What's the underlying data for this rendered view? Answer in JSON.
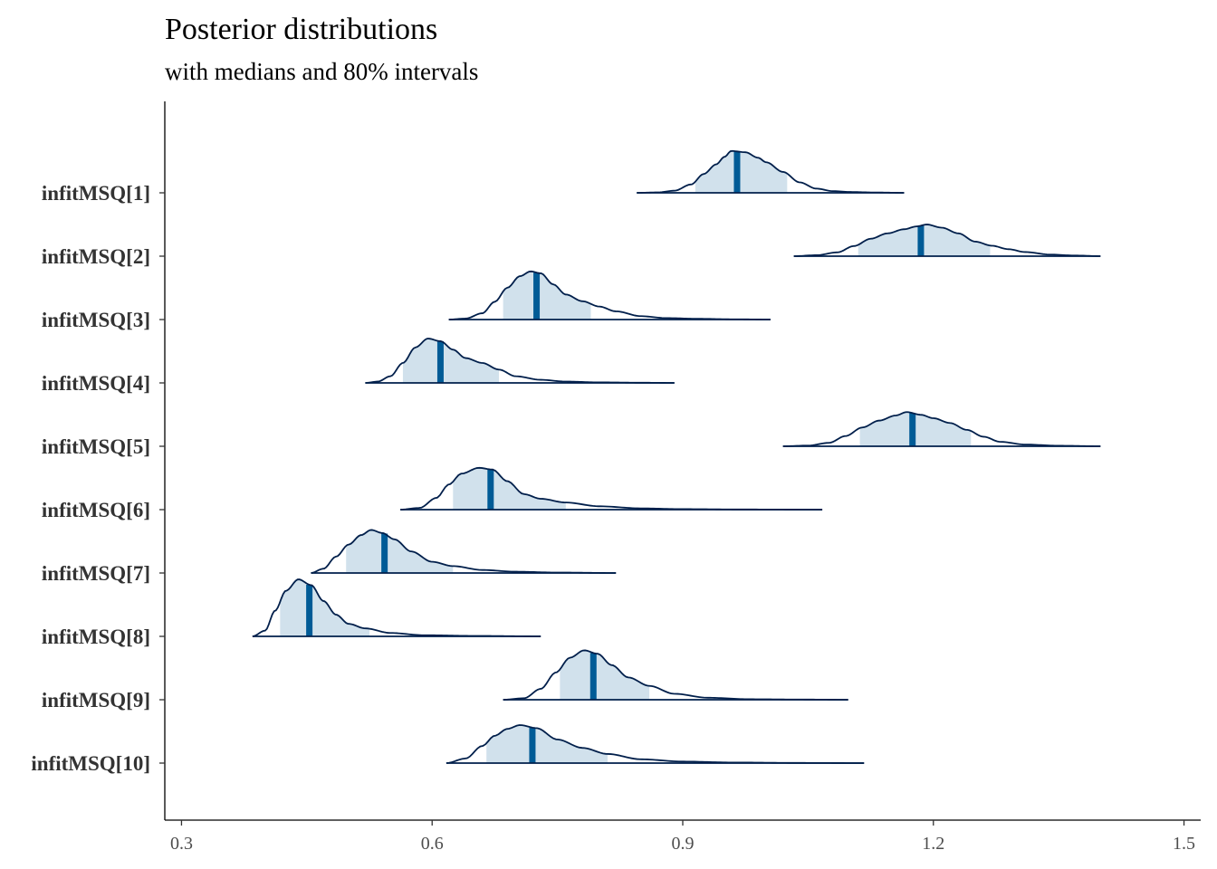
{
  "chart_data": {
    "type": "area",
    "subtype": "ridgeline-density",
    "title": "Posterior distributions",
    "subtitle": "with medians and 80% intervals",
    "xlabel": "",
    "ylabel": "",
    "xlim": [
      0.28,
      1.52
    ],
    "x_ticks": [
      "0.3",
      "0.6",
      "0.9",
      "1.2",
      "1.5"
    ],
    "grid": false,
    "colors": {
      "outline": "#011f4b",
      "interval_fill": "#d1e1ec",
      "median": "#005b96"
    },
    "series": [
      {
        "name": "infitMSQ[1]",
        "min": 0.845,
        "max": 1.165,
        "q10": 0.915,
        "median": 0.965,
        "q90": 1.025,
        "mode": 0.958,
        "peak": 0.66,
        "profile": [
          [
            0.845,
            0.0
          ],
          [
            0.87,
            0.01
          ],
          [
            0.89,
            0.05
          ],
          [
            0.91,
            0.2
          ],
          [
            0.925,
            0.45
          ],
          [
            0.94,
            0.68
          ],
          [
            0.95,
            0.86
          ],
          [
            0.958,
            1.0
          ],
          [
            0.975,
            0.97
          ],
          [
            0.99,
            0.84
          ],
          [
            1.0,
            0.73
          ],
          [
            1.02,
            0.5
          ],
          [
            1.04,
            0.25
          ],
          [
            1.06,
            0.1
          ],
          [
            1.08,
            0.04
          ],
          [
            1.1,
            0.02
          ],
          [
            1.13,
            0.008
          ],
          [
            1.165,
            0.0
          ]
        ]
      },
      {
        "name": "infitMSQ[2]",
        "min": 1.033,
        "max": 1.4,
        "q10": 1.11,
        "median": 1.185,
        "q90": 1.268,
        "mode": 1.192,
        "peak": 0.5,
        "profile": [
          [
            1.033,
            0.0
          ],
          [
            1.06,
            0.03
          ],
          [
            1.085,
            0.12
          ],
          [
            1.105,
            0.32
          ],
          [
            1.125,
            0.55
          ],
          [
            1.145,
            0.72
          ],
          [
            1.165,
            0.85
          ],
          [
            1.18,
            0.94
          ],
          [
            1.192,
            1.0
          ],
          [
            1.21,
            0.9
          ],
          [
            1.23,
            0.72
          ],
          [
            1.25,
            0.46
          ],
          [
            1.27,
            0.33
          ],
          [
            1.29,
            0.22
          ],
          [
            1.31,
            0.13
          ],
          [
            1.34,
            0.05
          ],
          [
            1.37,
            0.02
          ],
          [
            1.4,
            0.0
          ]
        ]
      },
      {
        "name": "infitMSQ[3]",
        "min": 0.62,
        "max": 1.005,
        "q10": 0.685,
        "median": 0.725,
        "q90": 0.79,
        "mode": 0.718,
        "peak": 0.76,
        "profile": [
          [
            0.62,
            0.0
          ],
          [
            0.64,
            0.02
          ],
          [
            0.66,
            0.13
          ],
          [
            0.675,
            0.37
          ],
          [
            0.69,
            0.66
          ],
          [
            0.705,
            0.9
          ],
          [
            0.718,
            1.0
          ],
          [
            0.73,
            0.96
          ],
          [
            0.745,
            0.73
          ],
          [
            0.76,
            0.52
          ],
          [
            0.78,
            0.38
          ],
          [
            0.8,
            0.27
          ],
          [
            0.82,
            0.17
          ],
          [
            0.85,
            0.07
          ],
          [
            0.88,
            0.03
          ],
          [
            0.92,
            0.015
          ],
          [
            0.96,
            0.005
          ],
          [
            1.005,
            0.0
          ]
        ]
      },
      {
        "name": "infitMSQ[4]",
        "min": 0.52,
        "max": 0.89,
        "q10": 0.565,
        "median": 0.61,
        "q90": 0.68,
        "mode": 0.595,
        "peak": 0.7,
        "profile": [
          [
            0.52,
            0.0
          ],
          [
            0.535,
            0.03
          ],
          [
            0.55,
            0.15
          ],
          [
            0.565,
            0.45
          ],
          [
            0.58,
            0.8
          ],
          [
            0.595,
            1.0
          ],
          [
            0.61,
            0.94
          ],
          [
            0.625,
            0.75
          ],
          [
            0.64,
            0.56
          ],
          [
            0.66,
            0.45
          ],
          [
            0.68,
            0.3
          ],
          [
            0.7,
            0.15
          ],
          [
            0.73,
            0.07
          ],
          [
            0.76,
            0.03
          ],
          [
            0.8,
            0.012
          ],
          [
            0.85,
            0.004
          ],
          [
            0.89,
            0.0
          ]
        ]
      },
      {
        "name": "infitMSQ[5]",
        "min": 1.02,
        "max": 1.4,
        "q10": 1.112,
        "median": 1.175,
        "q90": 1.245,
        "mode": 1.168,
        "peak": 0.54,
        "profile": [
          [
            1.02,
            0.0
          ],
          [
            1.05,
            0.02
          ],
          [
            1.075,
            0.1
          ],
          [
            1.095,
            0.3
          ],
          [
            1.115,
            0.55
          ],
          [
            1.135,
            0.75
          ],
          [
            1.155,
            0.9
          ],
          [
            1.168,
            1.0
          ],
          [
            1.185,
            0.92
          ],
          [
            1.2,
            0.82
          ],
          [
            1.22,
            0.68
          ],
          [
            1.24,
            0.48
          ],
          [
            1.26,
            0.28
          ],
          [
            1.28,
            0.13
          ],
          [
            1.31,
            0.05
          ],
          [
            1.35,
            0.015
          ],
          [
            1.4,
            0.0
          ]
        ]
      },
      {
        "name": "infitMSQ[6]",
        "min": 0.562,
        "max": 1.067,
        "q10": 0.625,
        "median": 0.67,
        "q90": 0.76,
        "mode": 0.656,
        "peak": 0.66,
        "profile": [
          [
            0.562,
            0.0
          ],
          [
            0.585,
            0.04
          ],
          [
            0.605,
            0.28
          ],
          [
            0.62,
            0.6
          ],
          [
            0.635,
            0.86
          ],
          [
            0.656,
            1.0
          ],
          [
            0.672,
            0.96
          ],
          [
            0.69,
            0.68
          ],
          [
            0.71,
            0.37
          ],
          [
            0.73,
            0.26
          ],
          [
            0.76,
            0.17
          ],
          [
            0.8,
            0.08
          ],
          [
            0.85,
            0.03
          ],
          [
            0.9,
            0.012
          ],
          [
            0.97,
            0.004
          ],
          [
            1.067,
            0.0
          ]
        ]
      },
      {
        "name": "infitMSQ[7]",
        "min": 0.455,
        "max": 0.82,
        "q10": 0.497,
        "median": 0.543,
        "q90": 0.625,
        "mode": 0.527,
        "peak": 0.68,
        "profile": [
          [
            0.455,
            0.0
          ],
          [
            0.47,
            0.1
          ],
          [
            0.485,
            0.38
          ],
          [
            0.5,
            0.66
          ],
          [
            0.515,
            0.88
          ],
          [
            0.527,
            1.0
          ],
          [
            0.54,
            0.93
          ],
          [
            0.555,
            0.78
          ],
          [
            0.575,
            0.5
          ],
          [
            0.6,
            0.26
          ],
          [
            0.625,
            0.16
          ],
          [
            0.66,
            0.07
          ],
          [
            0.7,
            0.03
          ],
          [
            0.75,
            0.01
          ],
          [
            0.82,
            0.0
          ]
        ]
      },
      {
        "name": "infitMSQ[8]",
        "min": 0.385,
        "max": 0.73,
        "q10": 0.418,
        "median": 0.453,
        "q90": 0.525,
        "mode": 0.44,
        "peak": 0.9,
        "profile": [
          [
            0.385,
            0.0
          ],
          [
            0.4,
            0.1
          ],
          [
            0.412,
            0.45
          ],
          [
            0.425,
            0.8
          ],
          [
            0.44,
            1.0
          ],
          [
            0.455,
            0.9
          ],
          [
            0.47,
            0.62
          ],
          [
            0.485,
            0.38
          ],
          [
            0.5,
            0.22
          ],
          [
            0.52,
            0.14
          ],
          [
            0.55,
            0.06
          ],
          [
            0.59,
            0.02
          ],
          [
            0.65,
            0.008
          ],
          [
            0.73,
            0.0
          ]
        ]
      },
      {
        "name": "infitMSQ[9]",
        "min": 0.685,
        "max": 1.098,
        "q10": 0.753,
        "median": 0.793,
        "q90": 0.86,
        "mode": 0.782,
        "peak": 0.78,
        "profile": [
          [
            0.685,
            0.0
          ],
          [
            0.71,
            0.03
          ],
          [
            0.73,
            0.22
          ],
          [
            0.748,
            0.55
          ],
          [
            0.765,
            0.85
          ],
          [
            0.782,
            1.0
          ],
          [
            0.798,
            0.93
          ],
          [
            0.815,
            0.7
          ],
          [
            0.835,
            0.45
          ],
          [
            0.86,
            0.28
          ],
          [
            0.89,
            0.12
          ],
          [
            0.93,
            0.04
          ],
          [
            0.98,
            0.01
          ],
          [
            1.04,
            0.004
          ],
          [
            1.098,
            0.0
          ]
        ]
      },
      {
        "name": "infitMSQ[10]",
        "min": 0.617,
        "max": 1.117,
        "q10": 0.665,
        "median": 0.72,
        "q90": 0.81,
        "mode": 0.705,
        "peak": 0.6,
        "profile": [
          [
            0.617,
            0.0
          ],
          [
            0.64,
            0.12
          ],
          [
            0.66,
            0.45
          ],
          [
            0.675,
            0.72
          ],
          [
            0.69,
            0.9
          ],
          [
            0.705,
            1.0
          ],
          [
            0.725,
            0.92
          ],
          [
            0.75,
            0.62
          ],
          [
            0.78,
            0.4
          ],
          [
            0.81,
            0.24
          ],
          [
            0.85,
            0.1
          ],
          [
            0.9,
            0.04
          ],
          [
            0.96,
            0.015
          ],
          [
            1.04,
            0.004
          ],
          [
            1.117,
            0.0
          ]
        ]
      }
    ]
  }
}
